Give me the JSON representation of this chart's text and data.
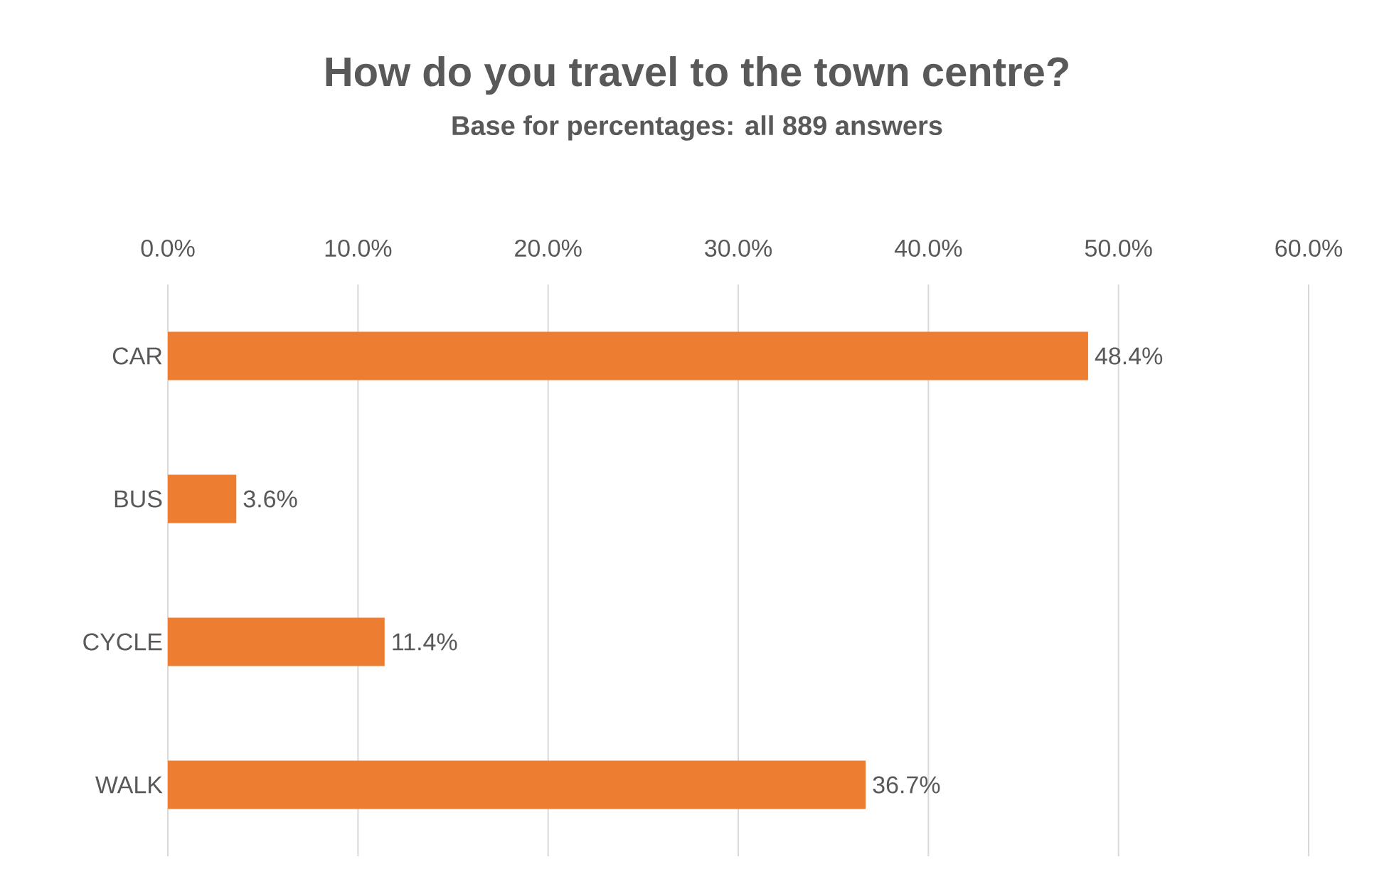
{
  "chart_data": {
    "type": "bar",
    "orientation": "horizontal",
    "title": "How do you travel to the town centre?",
    "subtitle": "Base for percentages: all 889 answers",
    "categories": [
      "CAR",
      "BUS",
      "CYCLE",
      "WALK"
    ],
    "values": [
      48.4,
      3.6,
      11.4,
      36.7
    ],
    "value_labels": [
      "48.4%",
      "3.6%",
      "11.4%",
      "36.7%"
    ],
    "color": "#ed7d31",
    "xlim": [
      0,
      60
    ],
    "xticks": [
      {
        "value": 0,
        "label": "0.0%"
      },
      {
        "value": 10,
        "label": "10.0%"
      },
      {
        "value": 20,
        "label": "20.0%"
      },
      {
        "value": 30,
        "label": "30.0%"
      },
      {
        "value": 40,
        "label": "40.0%"
      },
      {
        "value": 50,
        "label": "50.0%"
      },
      {
        "value": 60,
        "label": "60.0%"
      }
    ],
    "grid": "x"
  }
}
